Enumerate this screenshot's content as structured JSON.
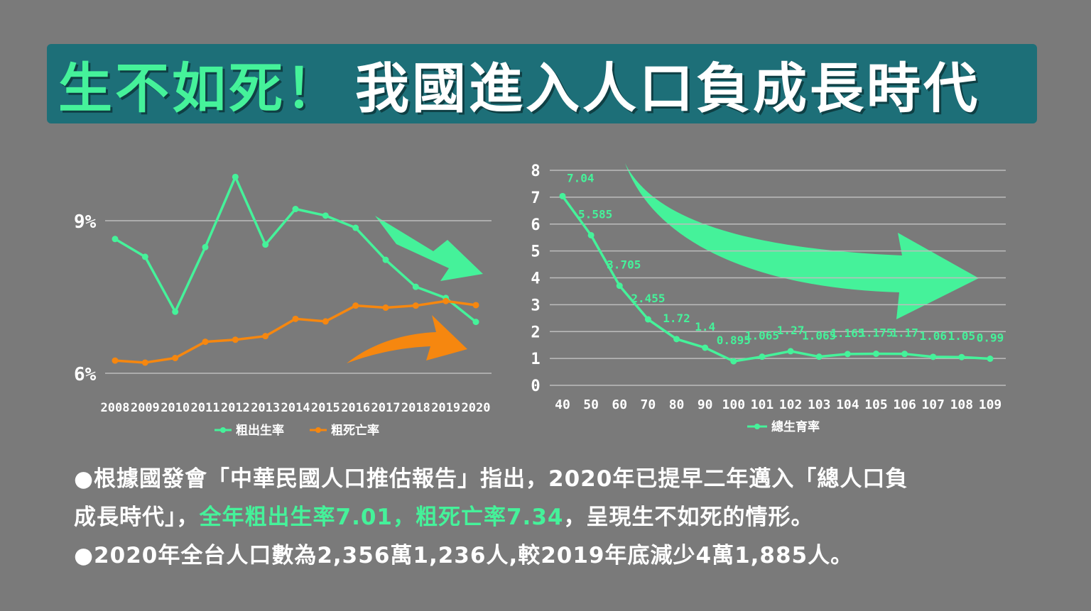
{
  "title": {
    "part1": "生不如死！",
    "part2": "我國進入人口負成長時代"
  },
  "colors": {
    "green": "#45f29a",
    "orange": "#f6870f",
    "teal": "#1d6f78",
    "background": "#7a7a7a"
  },
  "chart_data": [
    {
      "type": "line",
      "x": [
        "2008",
        "2009",
        "2010",
        "2011",
        "2012",
        "2013",
        "2014",
        "2015",
        "2016",
        "2017",
        "2018",
        "2019",
        "2020"
      ],
      "series": [
        {
          "name": "粗出生率",
          "color": "#45f29a",
          "values": [
            8.64,
            8.29,
            7.21,
            8.48,
            9.86,
            8.53,
            9.23,
            9.1,
            8.86,
            8.23,
            7.7,
            7.48,
            7.01
          ]
        },
        {
          "name": "粗死亡率",
          "color": "#f6870f",
          "values": [
            6.25,
            6.21,
            6.3,
            6.62,
            6.66,
            6.73,
            7.07,
            7.02,
            7.33,
            7.29,
            7.33,
            7.42,
            7.34
          ]
        }
      ],
      "y_tick_labels": [
        "6%",
        "9%"
      ],
      "ylim": [
        6,
        10
      ],
      "legend_position": "bottom"
    },
    {
      "type": "line",
      "x": [
        "40",
        "50",
        "60",
        "70",
        "80",
        "90",
        "100",
        "101",
        "102",
        "103",
        "104",
        "105",
        "106",
        "107",
        "108",
        "109"
      ],
      "series": [
        {
          "name": "總生育率",
          "color": "#45f29a",
          "values": [
            7.04,
            5.585,
            3.705,
            2.455,
            1.72,
            1.4,
            0.895,
            1.065,
            1.27,
            1.065,
            1.165,
            1.175,
            1.17,
            1.06,
            1.05,
            0.99
          ],
          "labels": [
            "7.04",
            "5.585",
            "3.705",
            "2.455",
            "1.72",
            "1.4",
            "0.895",
            "1.065",
            "1.27",
            "1.065",
            "1.165",
            "1.175",
            "1.17",
            "1.06",
            "1.05",
            "0.99"
          ]
        }
      ],
      "y_ticks": [
        "0",
        "1",
        "2",
        "3",
        "4",
        "5",
        "6",
        "7",
        "8"
      ],
      "ylim": [
        0,
        8
      ],
      "grid": true,
      "legend_position": "bottom"
    }
  ],
  "bullets": {
    "line1a": "●根據國發會「中華民國人口推估報告」指出，2020年已提早二年邁入「總人口負",
    "line1b_pre": "成長時代」，",
    "line1b_hl": "全年粗出生率7.01，粗死亡率7.34",
    "line1b_post": "，呈現生不如死的情形。",
    "line2": "●2020年全台人口數為2,356萬1,236人,較2019年底減少4萬1,885人。"
  }
}
